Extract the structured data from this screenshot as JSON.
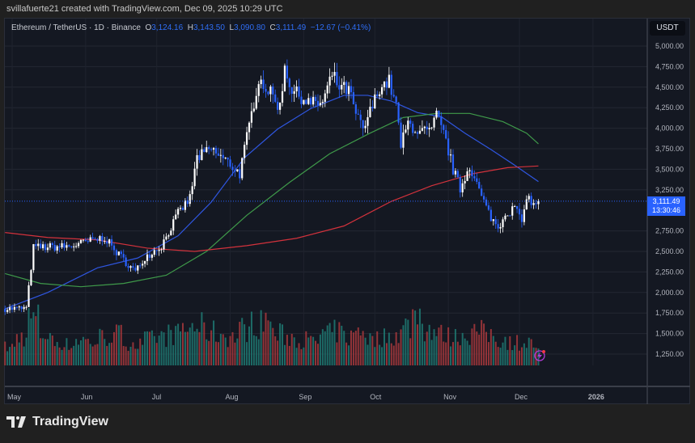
{
  "credit": "svillafuerte21 created with TradingView.com, Dec 09, 2025 10:29 UTC",
  "legend": {
    "symbol": "Ethereum / TetherUS · 1D · Binance",
    "o_label": "O",
    "o": "3,124.16",
    "h_label": "H",
    "h": "3,143.50",
    "l_label": "L",
    "l": "3,090.80",
    "c_label": "C",
    "c": "3,111.49",
    "change": "−12.67 (−0.41%)"
  },
  "currency": "USDT",
  "last_price": "3,111.49",
  "countdown": "13:30:46",
  "brand": "TradingView",
  "colors": {
    "up": "#ffffff",
    "down": "#2962ff",
    "ma_fast": "#2f56e0",
    "ma_mid": "#3f9a4a",
    "ma_slow": "#d3323c",
    "vol_up": "#1f7a73",
    "vol_down": "#a8383c",
    "last": "#2962ff"
  },
  "chart_data": {
    "type": "candlestick",
    "title": "Ethereum / TetherUS · 1D · Binance",
    "ylim": [
      1100,
      5150
    ],
    "y_ticks": [
      "5,000.00",
      "4,750.00",
      "4,500.00",
      "4,250.00",
      "4,000.00",
      "3,750.00",
      "3,500.00",
      "3,250.00",
      "2,750.00",
      "2,500.00",
      "2,250.00",
      "2,000.00",
      "1,750.00",
      "1,500.00",
      "1,250.00"
    ],
    "y_tick_values": [
      5000,
      4750,
      4500,
      4250,
      4000,
      3750,
      3500,
      3250,
      2750,
      2500,
      2250,
      2000,
      1750,
      1500,
      1250
    ],
    "x_range": [
      "2025-04-28",
      "2026-01-28"
    ],
    "x_ticks": [
      {
        "label": "May",
        "date": "2025-05-01"
      },
      {
        "label": "Jun",
        "date": "2025-06-01"
      },
      {
        "label": "Jul",
        "date": "2025-07-01"
      },
      {
        "label": "Aug",
        "date": "2025-08-01"
      },
      {
        "label": "Sep",
        "date": "2025-09-01"
      },
      {
        "label": "Oct",
        "date": "2025-10-01"
      },
      {
        "label": "Nov",
        "date": "2025-11-01"
      },
      {
        "label": "Dec",
        "date": "2025-12-01"
      },
      {
        "label": "2026",
        "date": "2026-01-01"
      }
    ],
    "grid": true,
    "price_path": [
      [
        "2025-04-28",
        1800
      ],
      [
        "2025-05-07",
        1810
      ],
      [
        "2025-05-10",
        2550
      ],
      [
        "2025-05-25",
        2560
      ],
      [
        "2025-06-09",
        2670
      ],
      [
        "2025-06-13",
        2520
      ],
      [
        "2025-06-22",
        2250
      ],
      [
        "2025-06-26",
        2430
      ],
      [
        "2025-07-03",
        2570
      ],
      [
        "2025-07-10",
        2960
      ],
      [
        "2025-07-15",
        3150
      ],
      [
        "2025-07-18",
        3640
      ],
      [
        "2025-07-24",
        3740
      ],
      [
        "2025-08-01",
        3560
      ],
      [
        "2025-08-05",
        3450
      ],
      [
        "2025-08-10",
        4170
      ],
      [
        "2025-08-13",
        4610
      ],
      [
        "2025-08-17",
        4460
      ],
      [
        "2025-08-22",
        4260
      ],
      [
        "2025-08-24",
        4760
      ],
      [
        "2025-08-27",
        4460
      ],
      [
        "2025-08-31",
        4380
      ],
      [
        "2025-09-04",
        4300
      ],
      [
        "2025-09-09",
        4310
      ],
      [
        "2025-09-13",
        4650
      ],
      [
        "2025-09-16",
        4500
      ],
      [
        "2025-09-20",
        4460
      ],
      [
        "2025-09-23",
        4170
      ],
      [
        "2025-09-26",
        3970
      ],
      [
        "2025-09-30",
        4270
      ],
      [
        "2025-10-03",
        4500
      ],
      [
        "2025-10-07",
        4570
      ],
      [
        "2025-10-10",
        4260
      ],
      [
        "2025-10-12",
        3790
      ],
      [
        "2025-10-15",
        4060
      ],
      [
        "2025-10-20",
        3950
      ],
      [
        "2025-10-25",
        3960
      ],
      [
        "2025-10-27",
        4160
      ],
      [
        "2025-10-31",
        3840
      ],
      [
        "2025-11-03",
        3500
      ],
      [
        "2025-11-06",
        3260
      ],
      [
        "2025-11-10",
        3550
      ],
      [
        "2025-11-15",
        3160
      ],
      [
        "2025-11-18",
        2970
      ],
      [
        "2025-11-22",
        2780
      ],
      [
        "2025-11-25",
        2970
      ],
      [
        "2025-11-30",
        3030
      ],
      [
        "2025-12-02",
        2800
      ],
      [
        "2025-12-04",
        3190
      ],
      [
        "2025-12-07",
        3050
      ],
      [
        "2025-12-09",
        3111.49
      ]
    ],
    "ma_fast": [
      [
        "2025-04-28",
        1800
      ],
      [
        "2025-05-16",
        2000
      ],
      [
        "2025-06-06",
        2300
      ],
      [
        "2025-06-23",
        2420
      ],
      [
        "2025-07-10",
        2690
      ],
      [
        "2025-07-24",
        3100
      ],
      [
        "2025-08-07",
        3640
      ],
      [
        "2025-08-21",
        3990
      ],
      [
        "2025-09-04",
        4240
      ],
      [
        "2025-09-18",
        4400
      ],
      [
        "2025-09-28",
        4400
      ],
      [
        "2025-10-08",
        4330
      ],
      [
        "2025-10-19",
        4190
      ],
      [
        "2025-10-29",
        4140
      ],
      [
        "2025-11-08",
        3940
      ],
      [
        "2025-11-19",
        3740
      ],
      [
        "2025-11-29",
        3550
      ],
      [
        "2025-12-09",
        3350
      ]
    ],
    "ma_mid": [
      [
        "2025-04-28",
        2230
      ],
      [
        "2025-05-13",
        2110
      ],
      [
        "2025-05-30",
        2070
      ],
      [
        "2025-06-17",
        2110
      ],
      [
        "2025-07-05",
        2210
      ],
      [
        "2025-07-22",
        2500
      ],
      [
        "2025-08-08",
        2940
      ],
      [
        "2025-08-26",
        3340
      ],
      [
        "2025-09-12",
        3690
      ],
      [
        "2025-09-29",
        3940
      ],
      [
        "2025-10-13",
        4130
      ],
      [
        "2025-10-27",
        4180
      ],
      [
        "2025-11-10",
        4180
      ],
      [
        "2025-11-24",
        4080
      ],
      [
        "2025-12-04",
        3940
      ],
      [
        "2025-12-09",
        3810
      ]
    ],
    "ma_slow": [
      [
        "2025-04-28",
        2730
      ],
      [
        "2025-05-16",
        2670
      ],
      [
        "2025-06-06",
        2640
      ],
      [
        "2025-06-27",
        2540
      ],
      [
        "2025-07-17",
        2500
      ],
      [
        "2025-08-08",
        2570
      ],
      [
        "2025-08-29",
        2660
      ],
      [
        "2025-09-18",
        2810
      ],
      [
        "2025-10-08",
        3110
      ],
      [
        "2025-10-25",
        3300
      ],
      [
        "2025-11-12",
        3450
      ],
      [
        "2025-11-26",
        3520
      ],
      [
        "2025-12-09",
        3540
      ]
    ],
    "volume_relative": [
      0.35,
      0.55,
      0.9,
      0.6,
      0.45,
      0.4,
      0.5,
      0.45,
      0.55,
      0.6,
      0.45,
      0.4,
      0.5,
      0.55,
      0.6,
      0.7,
      0.75,
      0.65,
      0.6,
      0.55,
      0.7,
      0.8,
      0.9,
      0.6,
      0.55,
      0.5,
      0.45,
      0.6,
      0.65,
      0.55,
      0.7,
      0.5,
      0.55,
      0.6,
      0.75,
      1.0,
      0.7,
      0.6,
      0.55,
      0.6,
      0.65,
      0.6,
      0.5,
      0.45,
      0.45,
      0.4
    ]
  }
}
